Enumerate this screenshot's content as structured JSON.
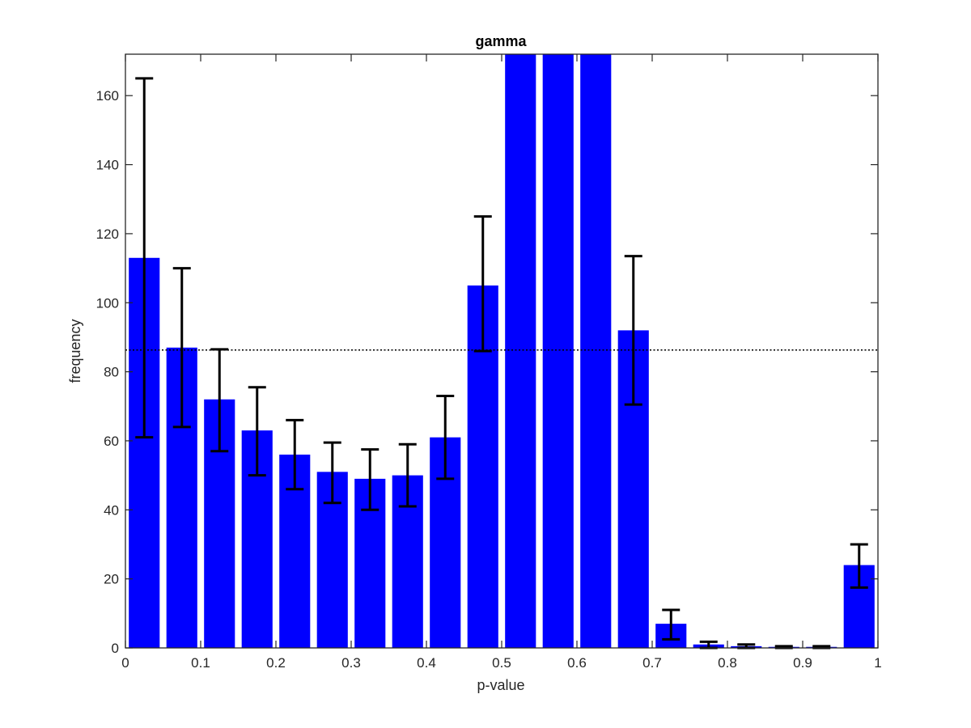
{
  "chart_data": {
    "type": "bar",
    "title": "gamma",
    "xlabel": "p-value",
    "ylabel": "frequency",
    "xlim": [
      0,
      1
    ],
    "ylim": [
      0,
      172
    ],
    "x_ticks": [
      0,
      0.1,
      0.2,
      0.3,
      0.4,
      0.5,
      0.6,
      0.7,
      0.8,
      0.9,
      1
    ],
    "x_tick_labels": [
      "0",
      "0.1",
      "0.2",
      "0.3",
      "0.4",
      "0.5",
      "0.6",
      "0.7",
      "0.8",
      "0.9",
      "1"
    ],
    "y_ticks": [
      0,
      20,
      40,
      60,
      80,
      100,
      120,
      140,
      160
    ],
    "y_tick_labels": [
      "0",
      "20",
      "40",
      "60",
      "80",
      "100",
      "120",
      "140",
      "160"
    ],
    "bin_width": 0.05,
    "bin_centers": [
      0.025,
      0.075,
      0.125,
      0.175,
      0.225,
      0.275,
      0.325,
      0.375,
      0.425,
      0.475,
      0.525,
      0.575,
      0.625,
      0.675,
      0.725,
      0.775,
      0.825,
      0.875,
      0.925,
      0.975
    ],
    "values": [
      113,
      87,
      72,
      63,
      56,
      51,
      49,
      50,
      61,
      105,
      172,
      172,
      172,
      92,
      7,
      1,
      0.5,
      0.3,
      0.3,
      24
    ],
    "error_low": [
      61,
      64,
      57,
      50,
      46,
      42,
      40,
      41,
      49,
      86,
      null,
      null,
      null,
      70.5,
      2.5,
      0,
      0,
      0,
      0,
      17.5
    ],
    "error_high": [
      165,
      110,
      86.5,
      75.5,
      66,
      59.5,
      57.5,
      59,
      73,
      125,
      null,
      null,
      null,
      113.5,
      11,
      1.8,
      1,
      0.5,
      0.5,
      30
    ],
    "reference_line": 86.3,
    "grid": false,
    "colors": {
      "bar": "#0000ff",
      "errorbar": "#000000",
      "reference": "#000000"
    }
  }
}
